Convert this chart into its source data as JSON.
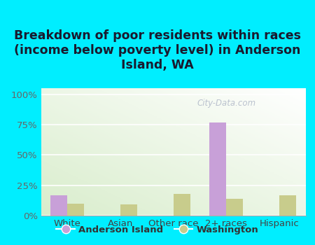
{
  "title": "Breakdown of poor residents within races\n(income below poverty level) in Anderson\nIsland, WA",
  "categories": [
    "White",
    "Asian",
    "Other race",
    "2+ races",
    "Hispanic"
  ],
  "anderson_island": [
    17,
    0,
    0,
    77,
    0
  ],
  "washington": [
    10,
    9,
    18,
    14,
    17
  ],
  "anderson_color": "#c8a0d8",
  "washington_color": "#c8cc8c",
  "background_outer": "#00eeff",
  "background_inner_topleft": "#f0f8ee",
  "background_inner_bottomleft": "#d8eec8",
  "yticks": [
    0,
    25,
    50,
    75,
    100
  ],
  "ytick_labels": [
    "0%",
    "25%",
    "50%",
    "75%",
    "100%"
  ],
  "ylim": [
    0,
    105
  ],
  "bar_width": 0.32,
  "legend_labels": [
    "Anderson Island",
    "Washington"
  ],
  "watermark": "City-Data.com",
  "title_fontsize": 12.5,
  "tick_fontsize": 9.5,
  "title_color": "#1a1a2e"
}
